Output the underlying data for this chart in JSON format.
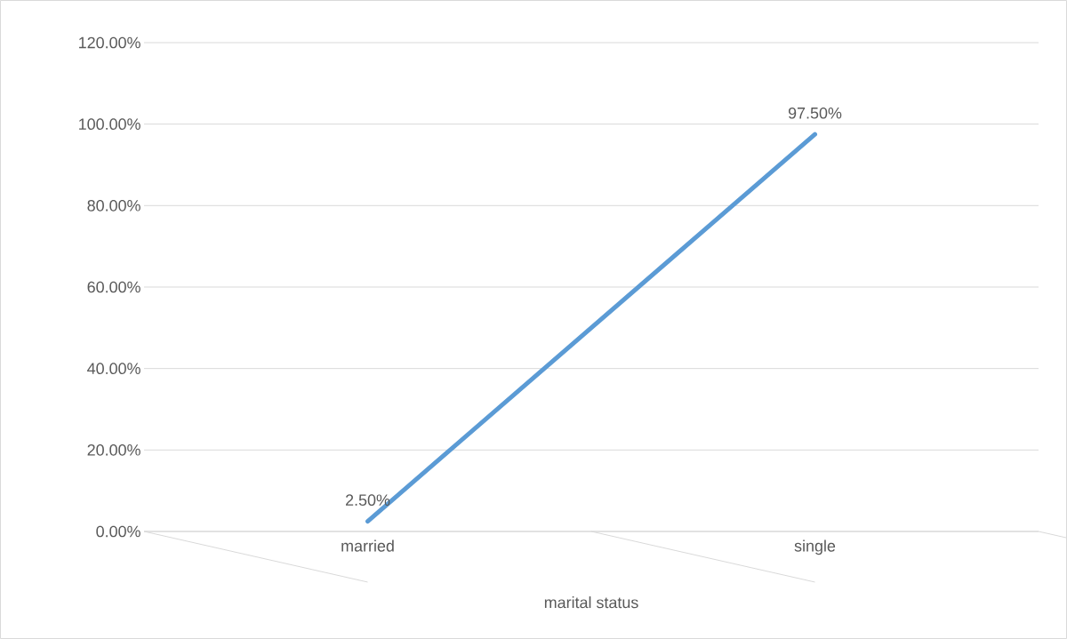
{
  "chart_data": {
    "type": "line",
    "xlabel": "marital status",
    "categories": [
      "married",
      "single"
    ],
    "series": [
      {
        "color": "#5b9bd5",
        "values": [
          2.5,
          97.5
        ],
        "value_labels": [
          "2.50%",
          "97.50%"
        ]
      }
    ],
    "ylim": [
      0,
      120
    ],
    "yticks": [
      {
        "value": 0,
        "label": "0.00%"
      },
      {
        "value": 20,
        "label": "20.00%"
      },
      {
        "value": 40,
        "label": "40.00%"
      },
      {
        "value": 60,
        "label": "60.00%"
      },
      {
        "value": 80,
        "label": "80.00%"
      },
      {
        "value": 100,
        "label": "100.00%"
      },
      {
        "value": 120,
        "label": "120.00%"
      }
    ],
    "grid": "y",
    "marker": "none",
    "line_style": "solid"
  }
}
